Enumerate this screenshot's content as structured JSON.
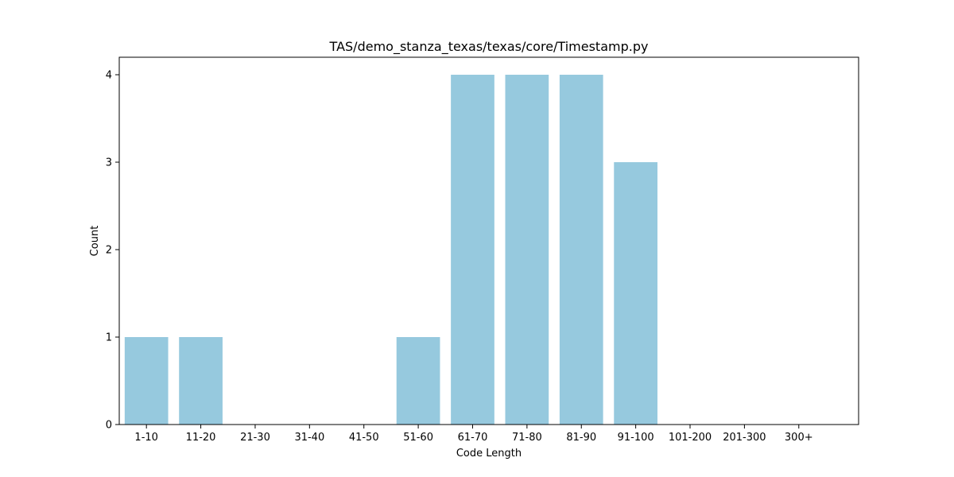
{
  "chart_data": {
    "type": "bar",
    "title": "TAS/demo_stanza_texas/texas/core/Timestamp.py",
    "xlabel": "Code Length",
    "ylabel": "Count",
    "categories": [
      "1-10",
      "11-20",
      "21-30",
      "31-40",
      "41-50",
      "51-60",
      "61-70",
      "71-80",
      "81-90",
      "91-100",
      "101-200",
      "201-300",
      "300+"
    ],
    "values": [
      1,
      1,
      0,
      0,
      0,
      1,
      4,
      4,
      4,
      3,
      0,
      0,
      0
    ],
    "ylim": [
      0,
      4.2
    ],
    "yticks": [
      0,
      1,
      2,
      3,
      4
    ],
    "grid": false,
    "bar_color": "#96c9de",
    "axis_color": "#000000"
  }
}
